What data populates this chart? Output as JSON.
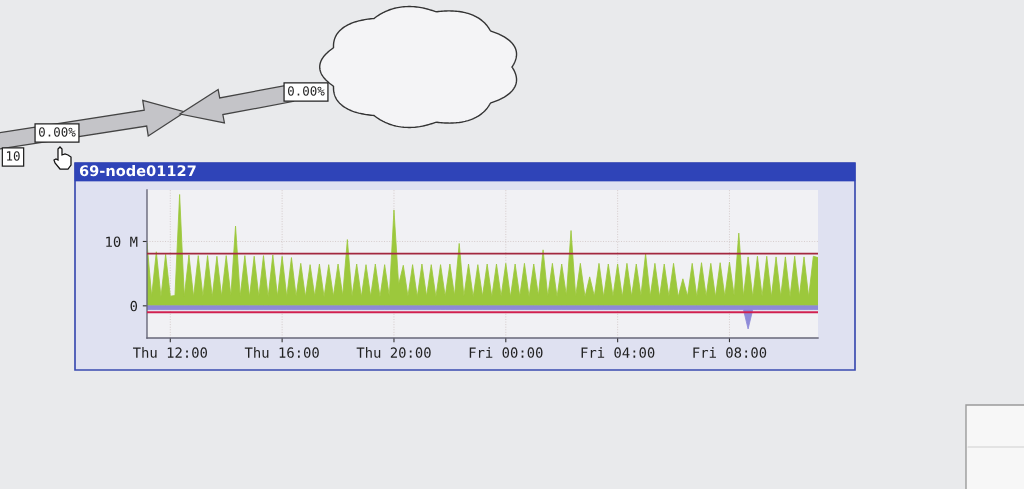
{
  "chart_data": {
    "type": "area",
    "title": "69-node01127",
    "categories": [
      null,
      null,
      null,
      null,
      null,
      "Thu 12:00",
      null,
      null,
      null,
      null,
      null,
      null,
      null,
      null,
      null,
      null,
      null,
      null,
      null,
      null,
      null,
      null,
      null,
      null,
      null,
      null,
      null,
      null,
      null,
      "Thu 16:00",
      null,
      null,
      null,
      null,
      null,
      null,
      null,
      null,
      null,
      null,
      null,
      null,
      null,
      null,
      null,
      null,
      null,
      null,
      null,
      null,
      null,
      null,
      null,
      "Thu 20:00",
      null,
      null,
      null,
      null,
      null,
      null,
      null,
      null,
      null,
      null,
      null,
      null,
      null,
      null,
      null,
      null,
      null,
      null,
      null,
      null,
      null,
      null,
      null,
      "Fri 00:00",
      null,
      null,
      null,
      null,
      null,
      null,
      null,
      null,
      null,
      null,
      null,
      null,
      null,
      null,
      null,
      null,
      null,
      null,
      null,
      null,
      null,
      null,
      null,
      "Fri 04:00",
      null,
      null,
      null,
      null,
      null,
      null,
      null,
      null,
      null,
      null,
      null,
      null,
      null,
      null,
      null,
      null,
      null,
      null,
      null,
      null,
      null,
      null,
      null,
      "Fri 08:00",
      null,
      null,
      null,
      null,
      null,
      null,
      null,
      null,
      null,
      null,
      null,
      null,
      null,
      null,
      null,
      null,
      null,
      null,
      null
    ],
    "series": [
      {
        "color": "#9cc83c",
        "values": [
          9.8,
          1.5,
          8.4,
          1.4,
          8.0,
          1.5,
          1.6,
          17.3,
          1.5,
          7.9,
          1.4,
          7.8,
          1.5,
          7.8,
          1.4,
          7.7,
          1.5,
          7.8,
          1.6,
          12.4,
          1.5,
          7.8,
          1.4,
          7.7,
          1.5,
          7.8,
          1.4,
          7.9,
          1.5,
          7.7,
          1.4,
          7.5,
          1.5,
          6.6,
          1.4,
          6.4,
          1.5,
          6.5,
          1.4,
          6.4,
          1.5,
          6.5,
          1.6,
          10.3,
          1.5,
          6.5,
          1.4,
          6.4,
          1.5,
          6.5,
          1.4,
          6.4,
          1.5,
          14.9,
          3.3,
          6.3,
          1.5,
          6.4,
          1.4,
          6.5,
          1.5,
          6.4,
          1.4,
          6.4,
          1.5,
          6.5,
          1.6,
          9.7,
          1.5,
          6.5,
          1.4,
          6.4,
          1.5,
          6.5,
          1.4,
          6.5,
          1.5,
          6.6,
          1.4,
          6.5,
          1.5,
          6.6,
          1.4,
          6.5,
          1.6,
          8.7,
          1.5,
          6.6,
          1.4,
          6.5,
          1.6,
          11.7,
          1.5,
          6.6,
          1.4,
          4.5,
          1.5,
          6.6,
          1.4,
          6.5,
          1.5,
          6.5,
          1.4,
          6.6,
          1.5,
          6.5,
          1.6,
          8.1,
          1.5,
          6.6,
          1.4,
          6.5,
          1.5,
          6.6,
          1.4,
          4.2,
          1.5,
          6.6,
          1.4,
          6.7,
          1.5,
          6.6,
          1.4,
          6.7,
          1.5,
          6.8,
          1.6,
          11.3,
          1.5,
          7.6,
          1.4,
          7.7,
          1.5,
          7.7,
          1.4,
          7.6,
          1.5,
          7.6,
          1.4,
          7.7,
          1.5,
          7.6,
          1.4,
          7.7,
          7.5
        ]
      },
      {
        "color": "#8e8ad8",
        "values": [
          -0.6,
          -0.6,
          -0.6,
          -0.6,
          -0.6,
          -0.6,
          -0.6,
          -0.6,
          -0.6,
          -0.6,
          -0.6,
          -0.6,
          -0.6,
          -0.6,
          -0.6,
          -0.6,
          -0.6,
          -0.6,
          -0.6,
          -0.6,
          -0.6,
          -0.6,
          -0.6,
          -0.6,
          -0.6,
          -0.6,
          -0.6,
          -0.6,
          -0.6,
          -0.6,
          -0.6,
          -0.6,
          -0.6,
          -0.6,
          -0.6,
          -0.6,
          -0.6,
          -0.6,
          -0.6,
          -0.6,
          -0.6,
          -0.6,
          -0.6,
          -0.6,
          -0.6,
          -0.6,
          -0.6,
          -0.6,
          -0.6,
          -0.6,
          -0.6,
          -0.6,
          -0.6,
          -0.6,
          -0.6,
          -0.6,
          -0.6,
          -0.6,
          -0.6,
          -0.6,
          -0.6,
          -0.6,
          -0.6,
          -0.6,
          -0.6,
          -0.6,
          -0.6,
          -0.6,
          -0.6,
          -0.6,
          -0.6,
          -0.6,
          -0.6,
          -0.6,
          -0.6,
          -0.6,
          -0.6,
          -0.6,
          -0.6,
          -0.6,
          -0.6,
          -0.6,
          -0.6,
          -0.6,
          -0.6,
          -0.6,
          -0.6,
          -0.6,
          -0.6,
          -0.6,
          -0.6,
          -0.6,
          -0.6,
          -0.6,
          -0.6,
          -0.6,
          -0.6,
          -0.6,
          -0.6,
          -0.6,
          -0.6,
          -0.6,
          -0.6,
          -0.6,
          -0.6,
          -0.6,
          -0.6,
          -0.6,
          -0.6,
          -0.6,
          -0.6,
          -0.6,
          -0.6,
          -0.6,
          -0.6,
          -0.6,
          -0.6,
          -0.6,
          -0.6,
          -0.6,
          -0.6,
          -0.6,
          -0.6,
          -0.6,
          -0.6,
          -0.6,
          -0.6,
          -0.6,
          -0.6,
          -3.6,
          -0.6,
          -0.6,
          -0.6,
          -0.6,
          -0.6,
          -0.6,
          -0.6,
          -0.6,
          -0.6,
          -0.6,
          -0.6,
          -0.6,
          -0.6,
          -0.6,
          -0.6
        ]
      }
    ],
    "ylim": [
      -5,
      18
    ],
    "yticks": [
      0,
      {
        "value": 10,
        "label": "10 M"
      }
    ],
    "ref_lines": [
      {
        "axis": "y",
        "value": 8.1,
        "color": "#a3283f"
      },
      {
        "axis": "y",
        "value": -1.0,
        "color": "#d02050"
      }
    ],
    "grid": true,
    "annotations": [
      "0.00%",
      "0.00%",
      "10"
    ]
  }
}
